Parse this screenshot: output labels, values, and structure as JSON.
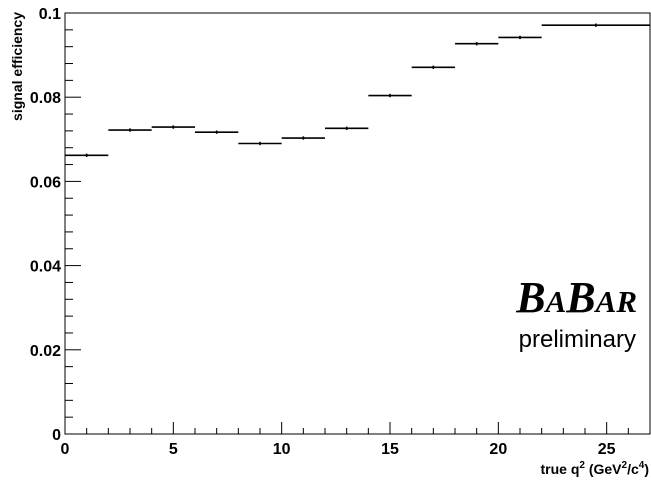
{
  "chart_data": {
    "type": "scatter",
    "xlabel_main": "true q",
    "xlabel_sup1": "2",
    "xlabel_paren_open": " (GeV",
    "xlabel_sup2": "2",
    "xlabel_mid": "/c",
    "xlabel_sup3": "4",
    "xlabel_paren_close": ")",
    "ylabel": "signal efficiency",
    "xlim": [
      0,
      27
    ],
    "ylim": [
      0,
      0.1
    ],
    "x_ticks": [
      "0",
      "5",
      "10",
      "15",
      "20",
      "25"
    ],
    "x_tick_values": [
      0,
      5,
      10,
      15,
      20,
      25
    ],
    "y_ticks": [
      "0",
      "0.02",
      "0.04",
      "0.06",
      "0.08",
      "0.1"
    ],
    "y_tick_values": [
      0,
      0.02,
      0.04,
      0.06,
      0.08,
      0.1
    ],
    "grid": false,
    "series": [
      {
        "bins": [
          {
            "x_low": 0,
            "x_high": 2,
            "x": 1,
            "y": 0.0662,
            "err": 0.0004
          },
          {
            "x_low": 2,
            "x_high": 4,
            "x": 3,
            "y": 0.0722,
            "err": 0.0004
          },
          {
            "x_low": 4,
            "x_high": 6,
            "x": 5,
            "y": 0.0729,
            "err": 0.0004
          },
          {
            "x_low": 6,
            "x_high": 8,
            "x": 7,
            "y": 0.0717,
            "err": 0.0004
          },
          {
            "x_low": 8,
            "x_high": 10,
            "x": 9,
            "y": 0.069,
            "err": 0.0004
          },
          {
            "x_low": 10,
            "x_high": 12,
            "x": 11,
            "y": 0.0703,
            "err": 0.0004
          },
          {
            "x_low": 12,
            "x_high": 14,
            "x": 13,
            "y": 0.0726,
            "err": 0.0004
          },
          {
            "x_low": 14,
            "x_high": 16,
            "x": 15,
            "y": 0.0804,
            "err": 0.0004
          },
          {
            "x_low": 16,
            "x_high": 18,
            "x": 17,
            "y": 0.0871,
            "err": 0.0004
          },
          {
            "x_low": 18,
            "x_high": 20,
            "x": 19,
            "y": 0.0927,
            "err": 0.0004
          },
          {
            "x_low": 20,
            "x_high": 22,
            "x": 21,
            "y": 0.0942,
            "err": 0.0004
          },
          {
            "x_low": 22,
            "x_high": 27,
            "x": 24.5,
            "y": 0.0971,
            "err": 0.0004
          }
        ]
      }
    ]
  },
  "annotation": {
    "logo": {
      "b1": "B",
      "a1": "A",
      "b2": "B",
      "ar": "AR"
    },
    "preliminary": "preliminary"
  },
  "colors": {
    "marker": "#000000",
    "frame": "#000000",
    "background": "#ffffff"
  }
}
